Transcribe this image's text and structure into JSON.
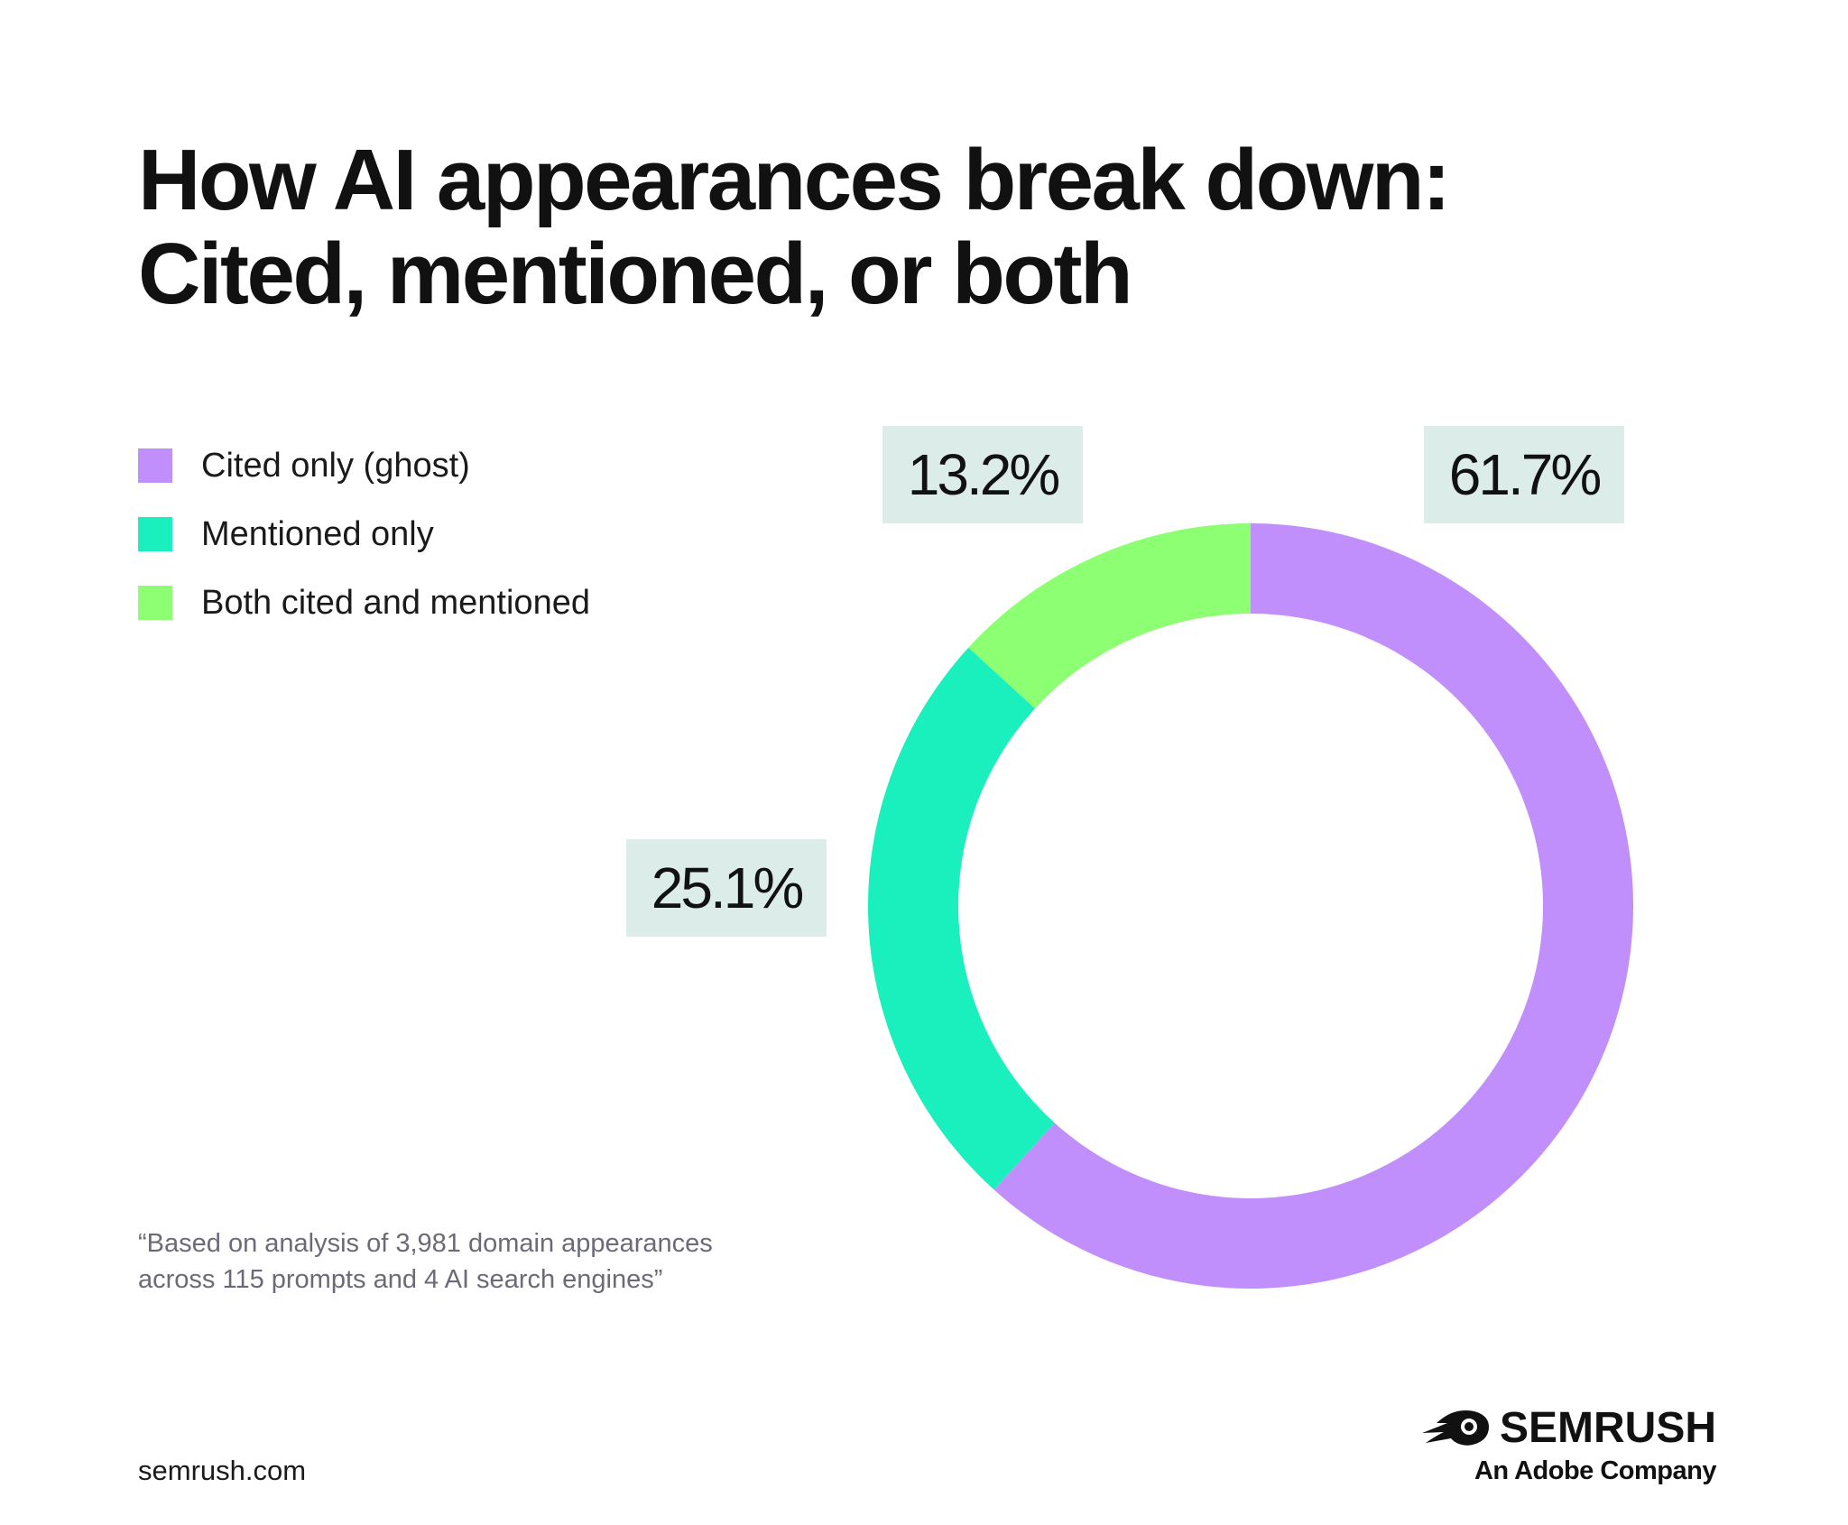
{
  "title_lines": [
    "How AI appearances break down:",
    "Cited, mentioned, or both"
  ],
  "legend": [
    {
      "label": "Cited only (ghost)",
      "color": "#c18ffb"
    },
    {
      "label": "Mentioned only",
      "color": "#1af0bd"
    },
    {
      "label": "Both cited and mentioned",
      "color": "#8cff73"
    }
  ],
  "footnote_lines": [
    "“Based on analysis of 3,981 domain appearances",
    "across 115 prompts and 4 AI search engines”"
  ],
  "site": "semrush.com",
  "brand": {
    "name": "SEMRUSH",
    "tagline": "An Adobe Company",
    "icon": "semrush-comet-icon"
  },
  "label_bg_color": "#dcece9",
  "chart_data": {
    "type": "pie",
    "variant": "donut",
    "title": "How AI appearances break down: Cited, mentioned, or both",
    "categories": [
      "Cited only (ghost)",
      "Mentioned only",
      "Both cited and mentioned"
    ],
    "values": [
      61.7,
      25.1,
      13.2
    ],
    "data_labels": [
      "61.7%",
      "25.1%",
      "13.2%"
    ],
    "colors": [
      "#c18ffb",
      "#1af0bd",
      "#8cff73"
    ],
    "start_angle": "top (12 o'clock), clockwise",
    "legend_position": "top-left"
  }
}
